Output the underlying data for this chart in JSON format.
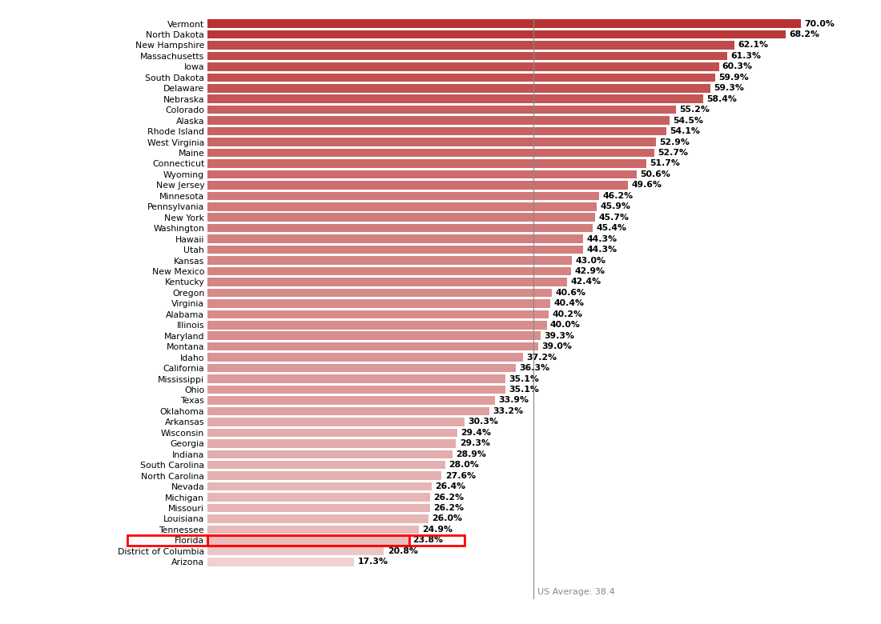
{
  "states": [
    "Vermont",
    "North Dakota",
    "New Hampshire",
    "Massachusetts",
    "Iowa",
    "South Dakota",
    "Delaware",
    "Nebraska",
    "Colorado",
    "Alaska",
    "Rhode Island",
    "West Virginia",
    "Maine",
    "Connecticut",
    "Wyoming",
    "New Jersey",
    "Minnesota",
    "Pennsylvania",
    "New York",
    "Washington",
    "Hawaii",
    "Utah",
    "Kansas",
    "New Mexico",
    "Kentucky",
    "Oregon",
    "Virginia",
    "Alabama",
    "Illinois",
    "Maryland",
    "Montana",
    "Idaho",
    "California",
    "Mississippi",
    "Ohio",
    "Texas",
    "Oklahoma",
    "Arkansas",
    "Wisconsin",
    "Georgia",
    "Indiana",
    "South Carolina",
    "North Carolina",
    "Nevada",
    "Michigan",
    "Missouri",
    "Louisiana",
    "Tennessee",
    "Florida",
    "District of Columbia",
    "Arizona"
  ],
  "values": [
    70.0,
    68.2,
    62.1,
    61.3,
    60.3,
    59.9,
    59.3,
    58.4,
    55.2,
    54.5,
    54.1,
    52.9,
    52.7,
    51.7,
    50.6,
    49.6,
    46.2,
    45.9,
    45.7,
    45.4,
    44.3,
    44.3,
    43.0,
    42.9,
    42.4,
    40.6,
    40.4,
    40.2,
    40.0,
    39.3,
    39.0,
    37.2,
    36.3,
    35.1,
    35.1,
    33.9,
    33.2,
    30.3,
    29.4,
    29.3,
    28.9,
    28.0,
    27.6,
    26.4,
    26.2,
    26.2,
    26.0,
    24.9,
    23.8,
    20.8,
    17.3
  ],
  "highlighted_state": "Florida",
  "us_average": 38.4,
  "bg_color": "#ffffff",
  "bar_color_high": "#b83232",
  "bar_color_low": "#f0d0d0",
  "label_fontsize": 7.8,
  "us_avg_fontsize": 8.0,
  "ytick_fontsize": 7.8
}
